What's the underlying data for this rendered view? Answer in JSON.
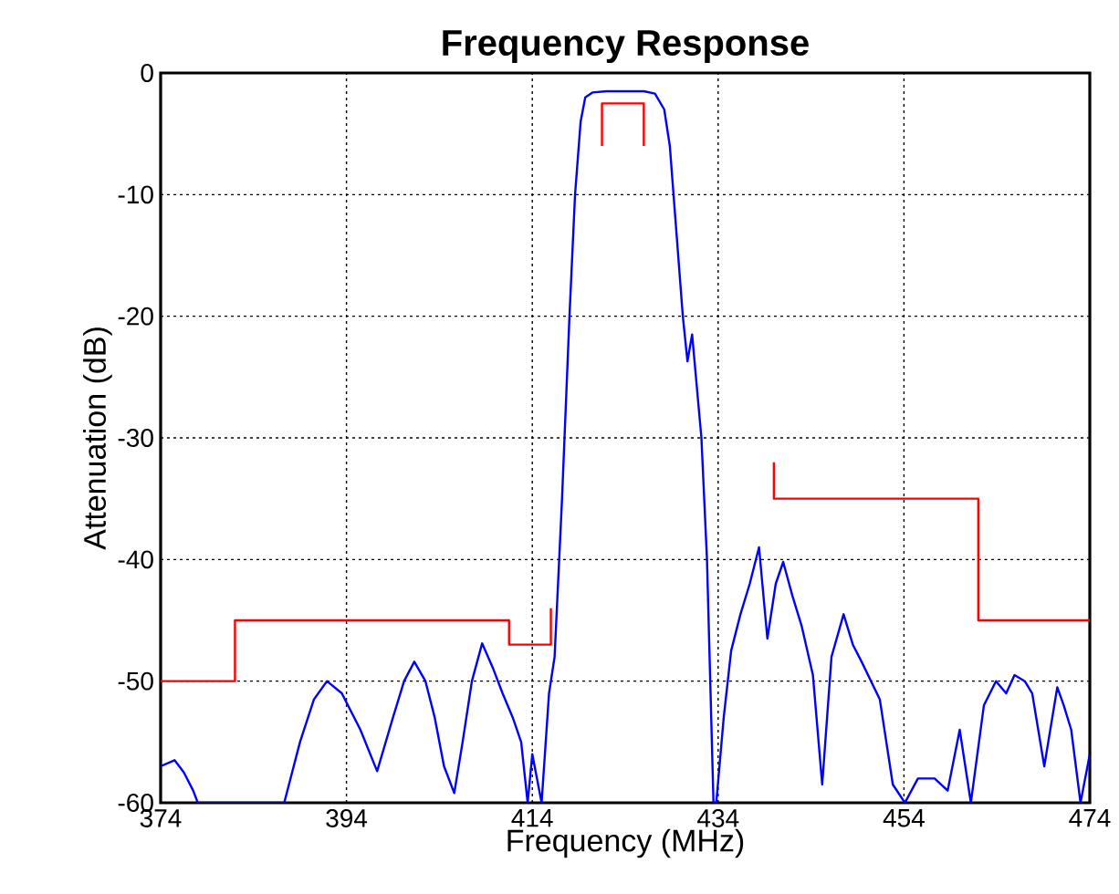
{
  "chart_data": {
    "type": "line",
    "title": "Frequency Response",
    "xlabel": "Frequency (MHz)",
    "ylabel": "Attenuation (dB)",
    "xlim": [
      374,
      474
    ],
    "ylim": [
      -60,
      0
    ],
    "xticks": [
      374,
      394,
      414,
      434,
      454,
      474
    ],
    "yticks": [
      -60,
      -50,
      -40,
      -30,
      -20,
      -10,
      0
    ],
    "grid": true,
    "series": [
      {
        "color": "#0000ff",
        "x": [
          374,
          375.5,
          376.5,
          377.5,
          378,
          387.3,
          389,
          390.5,
          391.9,
          393.5,
          395.5,
          397.3,
          399,
          400.2,
          401.3,
          402.5,
          403.5,
          404.5,
          405.6,
          406.5,
          407.5,
          408.6,
          409.8,
          410.8,
          411.9,
          412.8,
          413.5,
          414,
          414.5,
          415,
          415.8,
          416.4,
          417.2,
          418,
          418.6,
          419.2,
          419.7,
          420.5,
          422,
          424,
          426,
          427.2,
          428.2,
          428.8,
          429.2,
          430.2,
          430.7,
          431.2,
          432.2,
          432.8,
          433.5,
          433.8,
          434.6,
          435.4,
          436.4,
          437.4,
          438.4,
          439.3,
          440.2,
          441,
          442,
          443,
          444.2,
          445.2,
          446.2,
          447.5,
          448.5,
          449.5,
          451.4,
          452.8,
          454.1,
          455.5,
          457.3,
          458.7,
          460,
          461.2,
          462.6,
          463.9,
          465,
          465.9,
          467,
          467.8,
          469.1,
          470.5,
          471.2,
          472,
          473,
          474
        ],
        "values": [
          -57,
          -56.5,
          -57.5,
          -59,
          -60,
          -60,
          -55,
          -51.5,
          -50,
          -51,
          -54,
          -57.4,
          -53,
          -50,
          -48.4,
          -50,
          -53,
          -57,
          -59.2,
          -55,
          -50,
          -46.9,
          -49,
          -51,
          -53,
          -55,
          -60,
          -56,
          -58,
          -60,
          -51,
          -48,
          -35,
          -20,
          -10,
          -4,
          -2,
          -1.6,
          -1.5,
          -1.5,
          -1.5,
          -1.7,
          -3,
          -6,
          -10,
          -20,
          -23.7,
          -21.5,
          -30,
          -40,
          -60,
          -60,
          -53,
          -47.5,
          -44.5,
          -42,
          -39,
          -46.5,
          -42,
          -40.2,
          -43,
          -45.5,
          -49.5,
          -58.5,
          -48,
          -44.5,
          -47,
          -48.5,
          -51.5,
          -58.5,
          -60,
          -58,
          -58,
          -59,
          -54,
          -60,
          -52,
          -50,
          -51,
          -49.5,
          -50,
          -51,
          -57,
          -50.5,
          -52,
          -54,
          -60,
          -56
        ]
      },
      {
        "color": "#ff0000",
        "x": [
          374,
          382,
          382,
          411.5,
          411.5,
          416,
          416
        ],
        "values": [
          -50,
          -50,
          -45,
          -45,
          -47,
          -47,
          -44
        ]
      },
      {
        "color": "#ff0000",
        "x": [
          421.5,
          421.5,
          426,
          426
        ],
        "values": [
          -6,
          -2.5,
          -2.5,
          -6
        ]
      },
      {
        "color": "#ff0000",
        "x": [
          440,
          440,
          462,
          462,
          474
        ],
        "values": [
          -32,
          -35,
          -35,
          -45,
          -45
        ]
      }
    ]
  }
}
